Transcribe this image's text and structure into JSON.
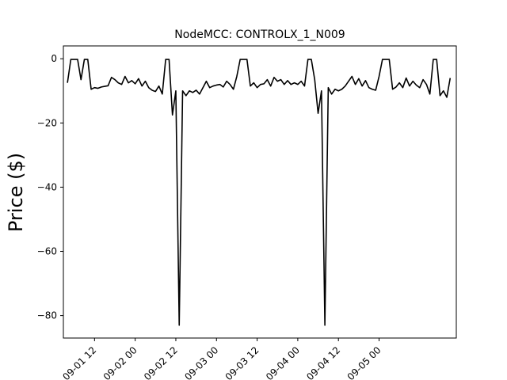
{
  "chart_data": {
    "type": "line",
    "title": "NodeMCC: CONTROLX_1_N009",
    "xlabel": "",
    "ylabel": "Price ($)",
    "ylim": [
      -87,
      4
    ],
    "xlim": [
      "2016-09-01T02:48",
      "2016-09-05T22:48"
    ],
    "x_ticks": [
      "09-01 12",
      "09-02 00",
      "09-02 12",
      "09-03 00",
      "09-03 12",
      "09-04 00",
      "09-04 12",
      "09-05 00"
    ],
    "y_ticks": [
      0,
      -20,
      -40,
      -60,
      -80
    ],
    "grid": false,
    "line_color": "#000000",
    "series": [
      {
        "x": [
          "2016-09-01T04:00",
          "2016-09-01T05:00",
          "2016-09-01T06:00",
          "2016-09-01T07:00",
          "2016-09-01T08:00",
          "2016-09-01T09:00",
          "2016-09-01T10:00",
          "2016-09-01T11:00",
          "2016-09-01T12:00",
          "2016-09-01T13:00",
          "2016-09-01T14:00",
          "2016-09-01T15:00",
          "2016-09-01T16:00",
          "2016-09-01T17:00",
          "2016-09-01T18:00",
          "2016-09-01T19:00",
          "2016-09-01T20:00",
          "2016-09-01T21:00",
          "2016-09-01T22:00",
          "2016-09-01T23:00",
          "2016-09-02T00:00",
          "2016-09-02T01:00",
          "2016-09-02T02:00",
          "2016-09-02T03:00",
          "2016-09-02T04:00",
          "2016-09-02T05:00",
          "2016-09-02T06:00",
          "2016-09-02T07:00",
          "2016-09-02T08:00",
          "2016-09-02T09:00",
          "2016-09-02T10:00",
          "2016-09-02T11:00",
          "2016-09-02T12:00",
          "2016-09-02T13:00",
          "2016-09-02T14:00",
          "2016-09-02T15:00",
          "2016-09-02T16:00",
          "2016-09-02T17:00",
          "2016-09-02T18:00",
          "2016-09-02T19:00",
          "2016-09-02T20:00",
          "2016-09-02T21:00",
          "2016-09-02T22:00",
          "2016-09-02T23:00",
          "2016-09-03T00:00",
          "2016-09-03T01:00",
          "2016-09-03T02:00",
          "2016-09-03T03:00",
          "2016-09-03T04:00",
          "2016-09-03T05:00",
          "2016-09-03T06:00",
          "2016-09-03T07:00",
          "2016-09-03T08:00",
          "2016-09-03T09:00",
          "2016-09-03T10:00",
          "2016-09-03T11:00",
          "2016-09-03T12:00",
          "2016-09-03T13:00",
          "2016-09-03T14:00",
          "2016-09-03T15:00",
          "2016-09-03T16:00",
          "2016-09-03T17:00",
          "2016-09-03T18:00",
          "2016-09-03T19:00",
          "2016-09-03T20:00",
          "2016-09-03T21:00",
          "2016-09-03T22:00",
          "2016-09-03T23:00",
          "2016-09-04T00:00",
          "2016-09-04T01:00",
          "2016-09-04T02:00",
          "2016-09-04T03:00",
          "2016-09-04T04:00",
          "2016-09-04T05:00",
          "2016-09-04T06:00",
          "2016-09-04T07:00",
          "2016-09-04T08:00",
          "2016-09-04T09:00",
          "2016-09-04T10:00",
          "2016-09-04T11:00",
          "2016-09-04T12:00",
          "2016-09-04T13:00",
          "2016-09-04T14:00",
          "2016-09-04T15:00",
          "2016-09-04T16:00",
          "2016-09-04T17:00",
          "2016-09-04T18:00",
          "2016-09-04T19:00",
          "2016-09-04T20:00",
          "2016-09-04T21:00",
          "2016-09-04T22:00",
          "2016-09-04T23:00",
          "2016-09-05T00:00",
          "2016-09-05T01:00",
          "2016-09-05T02:00",
          "2016-09-05T03:00",
          "2016-09-05T04:00",
          "2016-09-05T05:00",
          "2016-09-05T06:00",
          "2016-09-05T07:00",
          "2016-09-05T08:00",
          "2016-09-05T09:00",
          "2016-09-05T10:00",
          "2016-09-05T11:00",
          "2016-09-05T12:00",
          "2016-09-05T13:00",
          "2016-09-05T14:00",
          "2016-09-05T15:00",
          "2016-09-05T16:00",
          "2016-09-05T17:00",
          "2016-09-05T18:00",
          "2016-09-05T19:00",
          "2016-09-05T20:00",
          "2016-09-05T21:00"
        ],
        "values": [
          -7.5,
          -0.2,
          -0.2,
          -0.2,
          -6.5,
          -0.2,
          -0.2,
          -9.5,
          -9.0,
          -9.2,
          -8.8,
          -8.6,
          -8.4,
          -5.8,
          -6.5,
          -7.5,
          -8.0,
          -5.5,
          -7.5,
          -6.8,
          -7.8,
          -6.2,
          -8.5,
          -7.0,
          -9.0,
          -9.8,
          -10.2,
          -8.5,
          -11.0,
          -0.2,
          -0.2,
          -17.5,
          -10.0,
          -83.0,
          -10.0,
          -11.5,
          -10.0,
          -10.5,
          -9.8,
          -11.0,
          -9.0,
          -7.0,
          -9.0,
          -8.5,
          -8.2,
          -8.0,
          -8.8,
          -7.0,
          -8.0,
          -9.5,
          -5.5,
          -0.2,
          -0.2,
          -0.2,
          -8.5,
          -7.5,
          -9.0,
          -8.0,
          -7.8,
          -6.5,
          -8.5,
          -5.8,
          -7.0,
          -6.5,
          -8.0,
          -6.8,
          -8.0,
          -7.5,
          -8.0,
          -7.0,
          -8.5,
          -0.2,
          -0.2,
          -6.5,
          -17.0,
          -10.0,
          -83.0,
          -9.0,
          -11.0,
          -9.5,
          -10.0,
          -9.5,
          -8.5,
          -7.0,
          -5.5,
          -8.0,
          -6.2,
          -8.5,
          -6.8,
          -9.0,
          -9.5,
          -9.8,
          -5.5,
          -0.2,
          -0.2,
          -0.2,
          -9.5,
          -8.8,
          -7.5,
          -9.0,
          -6.0,
          -8.5,
          -7.0,
          -8.2,
          -9.0,
          -6.5,
          -8.0,
          -11.0,
          -0.2,
          -0.2,
          -11.5,
          -10.0,
          -12.0,
          -6.0
        ]
      }
    ]
  }
}
